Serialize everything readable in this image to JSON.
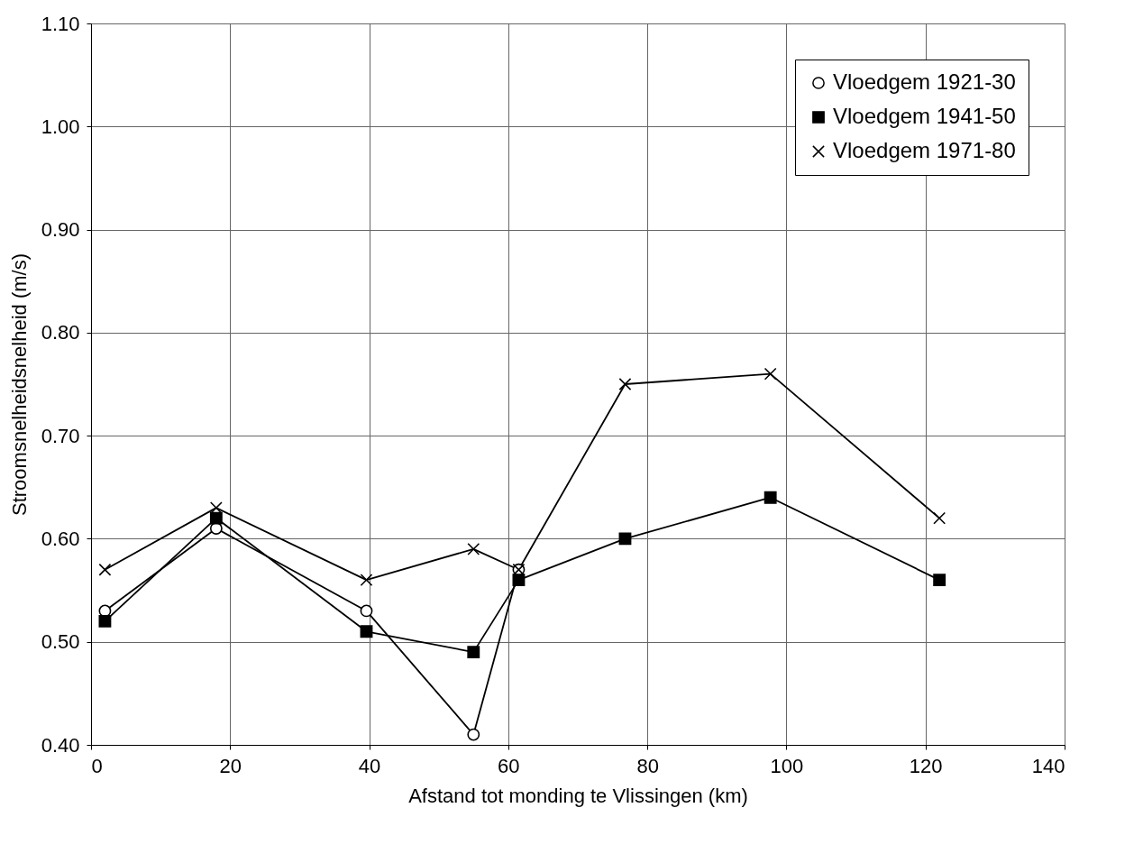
{
  "chart_data": {
    "type": "line",
    "xlabel": "Afstand tot monding te Vlissingen (km)",
    "ylabel": "Stroomsnelheidsnelheid (m/s)",
    "xlim": [
      0,
      140
    ],
    "xticks": [
      0,
      20,
      40,
      60,
      80,
      100,
      120,
      140
    ],
    "ylim": [
      0.4,
      1.1
    ],
    "yticks": [
      {
        "value": 0.4,
        "label": "0.40"
      },
      {
        "value": 0.5,
        "label": "0.50"
      },
      {
        "value": 0.6,
        "label": "0.60"
      },
      {
        "value": 0.7,
        "label": "0.70"
      },
      {
        "value": 0.8,
        "label": "0.80"
      },
      {
        "value": 0.9,
        "label": "0.90"
      },
      {
        "value": 1.0,
        "label": "1.00"
      },
      {
        "value": 1.1,
        "label": "1.10"
      }
    ],
    "grid": true,
    "legend": "top right",
    "line_style": "solid",
    "series": [
      {
        "name": "Vloedgem 1921-30",
        "color": "#000000",
        "marker": "circle",
        "x": [
          2,
          18,
          39.6,
          55,
          61.5
        ],
        "values": [
          0.53,
          0.61,
          0.53,
          0.41,
          0.57
        ]
      },
      {
        "name": "Vloedgem 1941-50",
        "color": "#000000",
        "marker": "square",
        "x": [
          2,
          18,
          39.6,
          55,
          61.5,
          76.8,
          97.7,
          122
        ],
        "values": [
          0.52,
          0.62,
          0.51,
          0.49,
          0.56,
          0.6,
          0.64,
          0.56
        ]
      },
      {
        "name": "Vloedgem 1971-80",
        "color": "#000000",
        "marker": "cross",
        "x": [
          2,
          18,
          39.6,
          55,
          61.5,
          76.8,
          97.7,
          122
        ],
        "values": [
          0.57,
          0.63,
          0.56,
          0.59,
          0.57,
          0.75,
          0.76,
          0.62
        ]
      }
    ]
  }
}
